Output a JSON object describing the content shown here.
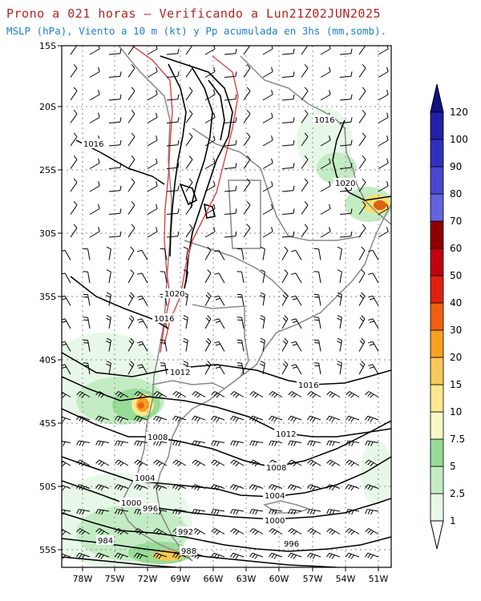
{
  "title": "Prono a 021 horas — Verificando a Lun21Z02JUN2025",
  "subtitle": "MSLP (hPa), Viento a 10 m (kt) y Pp acumulada en 3hs (mm,somb).",
  "lat_labels": [
    "15S",
    "20S",
    "25S",
    "30S",
    "35S",
    "40S",
    "45S",
    "50S",
    "55S"
  ],
  "lon_labels": [
    "78W",
    "75W",
    "72W",
    "69W",
    "66W",
    "63W",
    "60W",
    "57W",
    "54W",
    "51W"
  ],
  "colorbar": {
    "levels": [
      "1",
      "2.5",
      "5",
      "7.5",
      "10",
      "15",
      "20",
      "30",
      "40",
      "50",
      "60",
      "70",
      "80",
      "90",
      "100",
      "120"
    ],
    "colors": [
      "#e8f8e8",
      "#c4ecc4",
      "#98dc98",
      "#f8f8c8",
      "#fce890",
      "#f8c858",
      "#f8a020",
      "#f06010",
      "#e02010",
      "#c00010",
      "#900000",
      "#6464e0",
      "#4848d0",
      "#3030c0",
      "#2020a8",
      "#101080"
    ]
  },
  "isobar_labels": [
    {
      "text": "1016"
    },
    {
      "text": "1016"
    },
    {
      "text": "1020"
    },
    {
      "text": "1020"
    },
    {
      "text": "1016"
    },
    {
      "text": "1012"
    },
    {
      "text": "1016"
    },
    {
      "text": "1012"
    },
    {
      "text": "1008"
    },
    {
      "text": "1008"
    },
    {
      "text": "1004"
    },
    {
      "text": "1004"
    },
    {
      "text": "1000"
    },
    {
      "text": "996"
    },
    {
      "text": "1000"
    },
    {
      "text": "996"
    },
    {
      "text": "992"
    },
    {
      "text": "988"
    },
    {
      "text": "984"
    }
  ]
}
